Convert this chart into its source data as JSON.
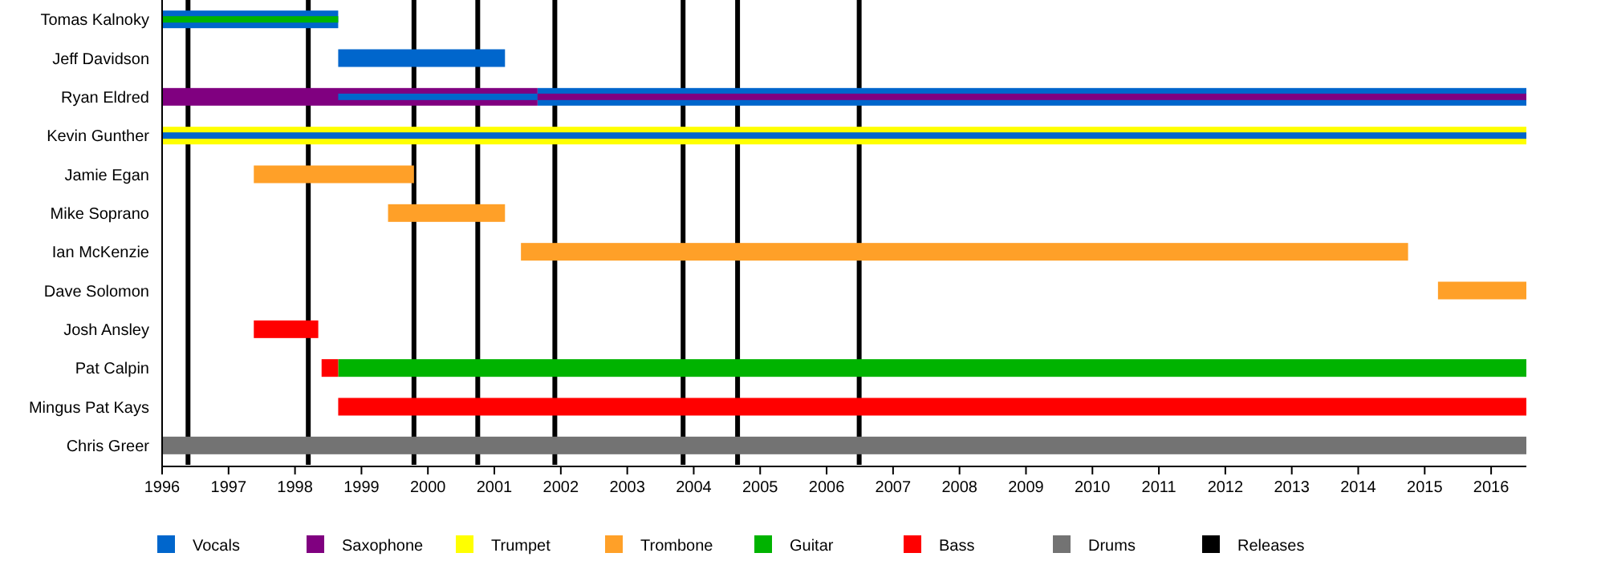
{
  "chart_data": {
    "type": "bar",
    "orientation": "horizontal",
    "categories": [
      "Tomas Kalnoky",
      "Jeff Davidson",
      "Ryan Eldred",
      "Kevin Gunther",
      "Jamie Egan",
      "Mike Soprano",
      "Ian McKenzie",
      "Dave Solomon",
      "Josh Ansley",
      "Pat Calpin",
      "Mingus Pat Kays",
      "Chris Greer"
    ],
    "xlim": [
      1996,
      2016.53
    ],
    "xticks": [
      1996,
      1997,
      1998,
      1999,
      2000,
      2001,
      2002,
      2003,
      2004,
      2005,
      2006,
      2007,
      2008,
      2009,
      2010,
      2011,
      2012,
      2013,
      2014,
      2015,
      2016
    ],
    "series": [
      {
        "name": "Vocals",
        "color": "#0066cc",
        "base": [
          1996,
          1998.65,
          2001.65,
          null,
          null,
          null,
          null,
          null,
          null,
          null,
          null,
          null
        ],
        "values": [
          2.65,
          2.51,
          14.88,
          null,
          null,
          null,
          null,
          null,
          null,
          null,
          null,
          null
        ]
      },
      {
        "name": "Saxophone",
        "color": "#800080",
        "base": [
          null,
          null,
          1996,
          null,
          null,
          null,
          null,
          null,
          null,
          null,
          null,
          null
        ],
        "values": [
          null,
          null,
          5.65,
          null,
          null,
          null,
          null,
          null,
          null,
          null,
          null,
          null
        ]
      },
      {
        "name": "Trumpet",
        "color": "#ffff00",
        "base": [
          null,
          null,
          null,
          1996,
          null,
          null,
          null,
          null,
          null,
          null,
          null,
          null
        ],
        "values": [
          null,
          null,
          null,
          20.53,
          null,
          null,
          null,
          null,
          null,
          null,
          null,
          null
        ]
      },
      {
        "name": "Trombone",
        "color": "#ffa028",
        "base": [
          null,
          null,
          null,
          null,
          1997.38,
          1999.4,
          2001.4,
          2015.2,
          null,
          null,
          null,
          null
        ],
        "values": [
          null,
          null,
          null,
          null,
          2.41,
          1.76,
          13.35,
          1.33,
          null,
          null,
          null,
          null
        ]
      },
      {
        "name": "Guitar",
        "color": "#00b300",
        "base": [
          1996,
          null,
          null,
          null,
          null,
          null,
          null,
          null,
          null,
          1998.65,
          null,
          null
        ],
        "values": [
          2.65,
          null,
          null,
          null,
          null,
          null,
          null,
          null,
          null,
          17.88,
          null,
          null
        ]
      },
      {
        "name": "Bass",
        "color": "#ff0000",
        "base": [
          null,
          null,
          null,
          null,
          null,
          null,
          null,
          null,
          1997.38,
          1998.4,
          1998.65,
          null
        ],
        "values": [
          null,
          null,
          null,
          null,
          null,
          null,
          null,
          null,
          0.97,
          0.25,
          17.88,
          null
        ]
      },
      {
        "name": "Drums",
        "color": "#737373",
        "base": [
          null,
          null,
          null,
          null,
          null,
          null,
          null,
          null,
          null,
          null,
          null,
          1996
        ],
        "values": [
          null,
          null,
          null,
          null,
          null,
          null,
          null,
          null,
          null,
          null,
          null,
          20.53
        ]
      },
      {
        "color": "#0066cc",
        "base": [
          null,
          null,
          1998.65,
          1996,
          null,
          null,
          null,
          null,
          null,
          null,
          null,
          null
        ],
        "values": [
          null,
          null,
          3.0,
          20.53,
          null,
          null,
          null,
          null,
          null,
          null,
          null,
          null
        ]
      },
      {
        "color": "#800080",
        "base": [
          null,
          null,
          2001.65,
          null,
          null,
          null,
          null,
          null,
          null,
          null,
          null,
          null
        ],
        "values": [
          null,
          null,
          14.88,
          null,
          null,
          null,
          null,
          null,
          null,
          null,
          null,
          null
        ]
      }
    ],
    "ref_lines": [
      {
        "axis": "x",
        "value": 1996.39,
        "color": "#000000",
        "label": "Releases"
      },
      {
        "axis": "x",
        "value": 1998.2,
        "color": "#000000"
      },
      {
        "axis": "x",
        "value": 1999.79,
        "color": "#000000"
      },
      {
        "axis": "x",
        "value": 2000.75,
        "color": "#000000"
      },
      {
        "axis": "x",
        "value": 2001.91,
        "color": "#000000"
      },
      {
        "axis": "x",
        "value": 2003.84,
        "color": "#000000"
      },
      {
        "axis": "x",
        "value": 2004.66,
        "color": "#000000"
      },
      {
        "axis": "x",
        "value": 2006.49,
        "color": "#000000"
      }
    ],
    "legend": "bottom",
    "grid": false
  }
}
